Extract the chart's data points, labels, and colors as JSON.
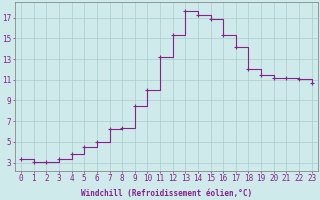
{
  "hours": [
    0,
    1,
    2,
    3,
    4,
    5,
    6,
    7,
    8,
    9,
    10,
    11,
    12,
    13,
    14,
    15,
    16,
    17,
    18,
    19,
    20,
    21,
    22,
    23
  ],
  "values": [
    3.3,
    3.1,
    3.1,
    3.3,
    3.8,
    4.5,
    5.0,
    6.2,
    6.3,
    8.5,
    10.0,
    13.2,
    15.3,
    17.6,
    17.3,
    16.9,
    15.3,
    14.2,
    12.0,
    11.5,
    11.2,
    11.2,
    11.1,
    10.7
  ],
  "line_color": "#882288",
  "marker": "+",
  "marker_color": "#882288",
  "bg_color": "#ceeaea",
  "grid_color": "#aacece",
  "xlabel": "Windchill (Refroidissement éolien,°C)",
  "xlabel_color": "#882288",
  "ylabel_ticks": [
    3,
    5,
    7,
    9,
    11,
    13,
    15,
    17
  ],
  "ylim": [
    2.2,
    18.5
  ],
  "xlim": [
    -0.5,
    23.5
  ],
  "tick_color": "#882288",
  "axis_color": "#888888",
  "label_fontsize": 5.5,
  "tick_fontsize": 5.5
}
